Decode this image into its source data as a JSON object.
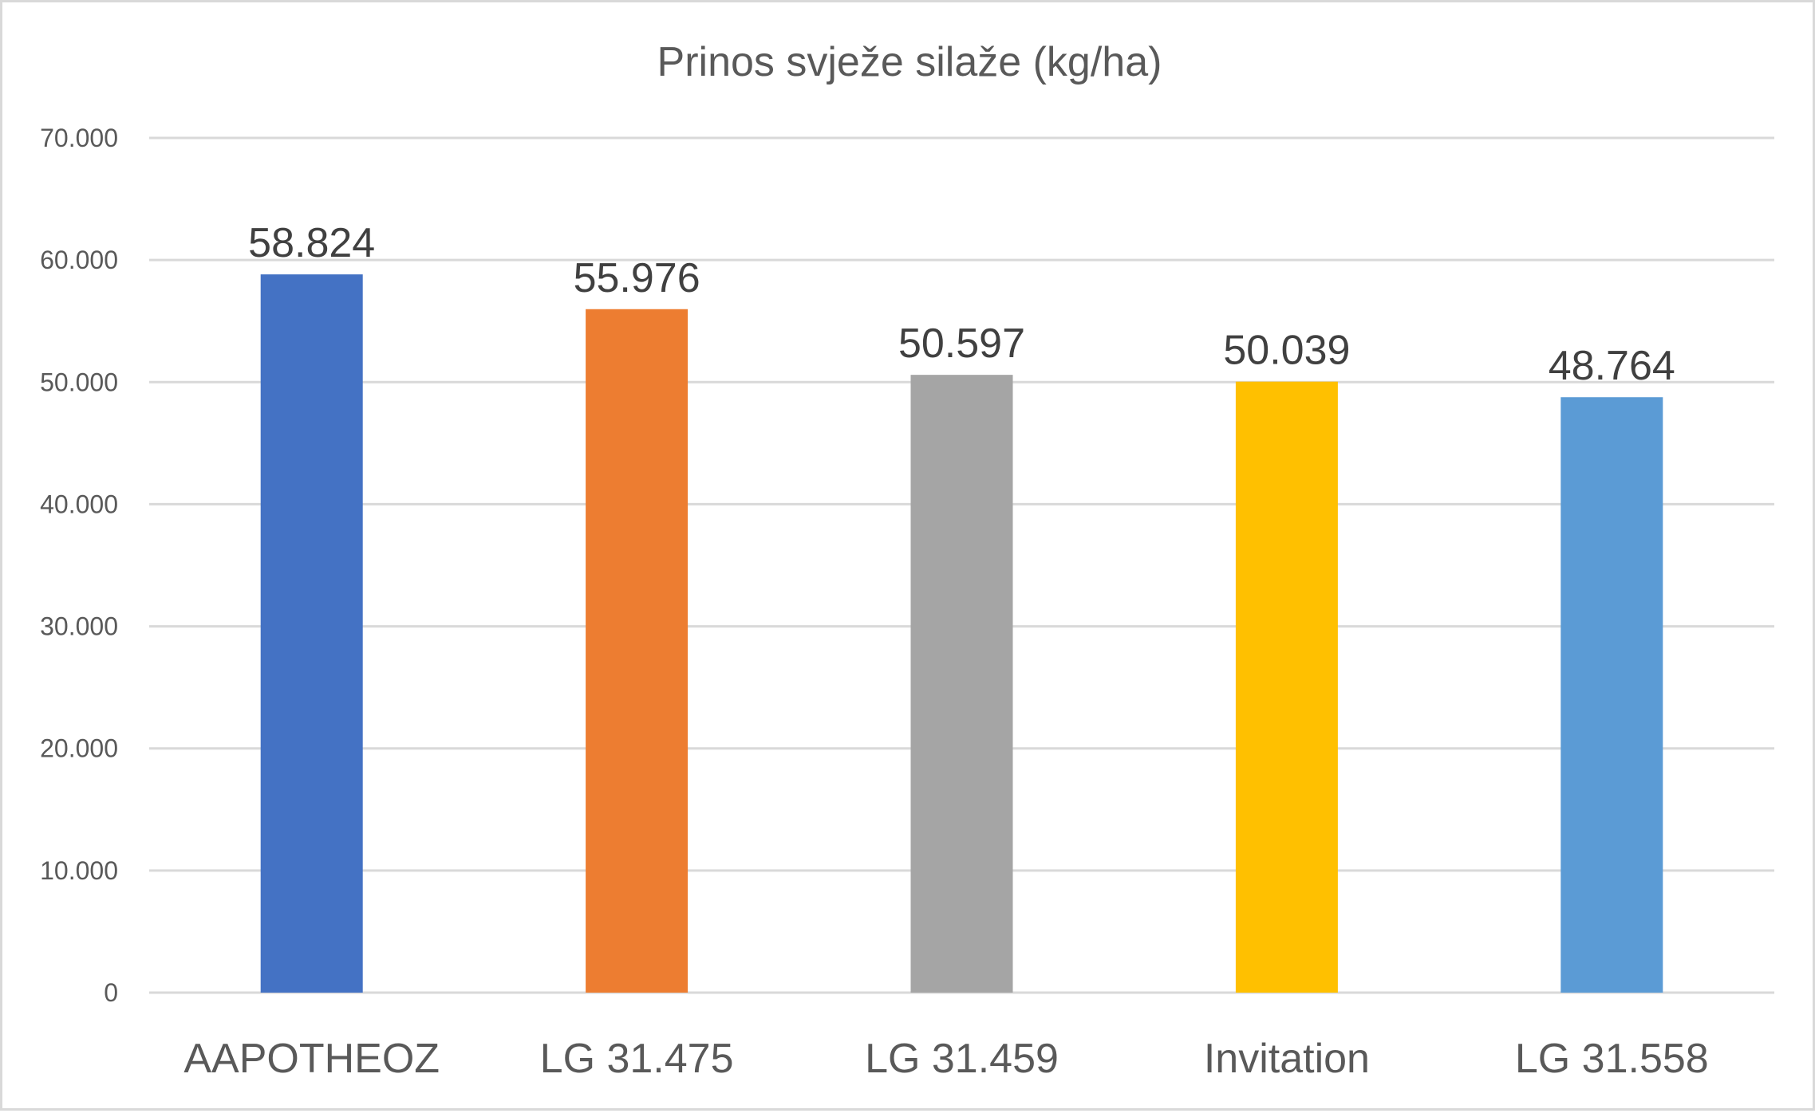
{
  "chart_data": {
    "type": "bar",
    "title": "Prinos svježe silaže (kg/ha)",
    "xlabel": "",
    "ylabel": "",
    "categories": [
      "AAPOTHEOZ",
      "LG 31.475",
      "LG 31.459",
      "Invitation",
      "LG 31.558"
    ],
    "values": [
      58824,
      55976,
      50597,
      50039,
      48764
    ],
    "data_labels": [
      "58.824",
      "55.976",
      "50.597",
      "50.039",
      "48.764"
    ],
    "colors": [
      "#4472c4",
      "#ed7d31",
      "#a5a5a5",
      "#ffc000",
      "#5b9bd5"
    ],
    "ylim": [
      0,
      70000
    ],
    "yticks": [
      0,
      10000,
      20000,
      30000,
      40000,
      50000,
      60000,
      70000
    ],
    "ytick_labels": [
      "0",
      "10.000",
      "20.000",
      "30.000",
      "40.000",
      "50.000",
      "60.000",
      "70.000"
    ],
    "grid": true,
    "legend": "none"
  }
}
